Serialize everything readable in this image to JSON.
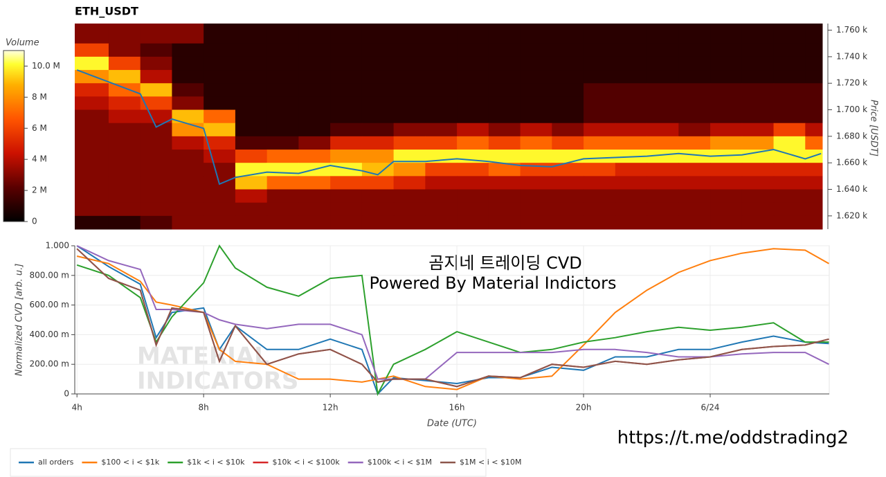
{
  "chart_data": [
    {
      "type": "heatmap",
      "title": "ETH_USDT",
      "y_label": "Price [USDT]",
      "xlim": [
        3.93,
        27.54
      ],
      "ylim": [
        1610,
        1765
      ],
      "yticks": [
        {
          "value": 1620,
          "label": "1.620 k"
        },
        {
          "value": 1640,
          "label": "1.640 k"
        },
        {
          "value": 1660,
          "label": "1.660 k"
        },
        {
          "value": 1680,
          "label": "1.680 k"
        },
        {
          "value": 1700,
          "label": "1.700 k"
        },
        {
          "value": 1720,
          "label": "1.720 k"
        },
        {
          "value": 1740,
          "label": "1.740 k"
        },
        {
          "value": 1760,
          "label": "1.760 k"
        }
      ],
      "x_edges": [
        3.93,
        5,
        6,
        7,
        8,
        9,
        10,
        11,
        12,
        13,
        14,
        15,
        16,
        17,
        18,
        19,
        20,
        21,
        22,
        23,
        24,
        25,
        26,
        27,
        27.54
      ],
      "y_edges": [
        1765,
        1750,
        1740,
        1730,
        1720,
        1710,
        1700,
        1690,
        1680,
        1670,
        1660,
        1650,
        1640,
        1630,
        1620,
        1610
      ],
      "values": [
        [
          3,
          3,
          3,
          3,
          1,
          1,
          1,
          1,
          1,
          1,
          1,
          1,
          1,
          1,
          1,
          1,
          1,
          1,
          1,
          1,
          1,
          1,
          1,
          1
        ],
        [
          6,
          3,
          2,
          1,
          1,
          1,
          1,
          1,
          1,
          1,
          1,
          1,
          1,
          1,
          1,
          1,
          1,
          1,
          1,
          1,
          1,
          1,
          1,
          1
        ],
        [
          10,
          6,
          3,
          1,
          1,
          1,
          1,
          1,
          1,
          1,
          1,
          1,
          1,
          1,
          1,
          1,
          1,
          1,
          1,
          1,
          1,
          1,
          1,
          1
        ],
        [
          8,
          9,
          4,
          1,
          1,
          1,
          1,
          1,
          1,
          1,
          1,
          1,
          1,
          1,
          1,
          1,
          1,
          1,
          1,
          1,
          1,
          1,
          1,
          1
        ],
        [
          5,
          7,
          9,
          2,
          1,
          1,
          1,
          1,
          1,
          1,
          1,
          1,
          1,
          1,
          1,
          1,
          2,
          2,
          2,
          2,
          2,
          2,
          2,
          2
        ],
        [
          4,
          5,
          6,
          3,
          1,
          1,
          1,
          1,
          1,
          1,
          1,
          1,
          1,
          1,
          1,
          1,
          2,
          2,
          2,
          2,
          2,
          2,
          2,
          2
        ],
        [
          3,
          4,
          4,
          9,
          7,
          1,
          1,
          1,
          1,
          1,
          1,
          1,
          1,
          1,
          1,
          1,
          2,
          2,
          2,
          2,
          2,
          2,
          2,
          2
        ],
        [
          3,
          3,
          3,
          8,
          9,
          1,
          1,
          1,
          2,
          2,
          3,
          3,
          4,
          3,
          4,
          3,
          4,
          4,
          4,
          3,
          4,
          4,
          6,
          4
        ],
        [
          3,
          3,
          3,
          4,
          5,
          2,
          2,
          3,
          5,
          5,
          6,
          6,
          7,
          6,
          7,
          6,
          7,
          7,
          7,
          7,
          8,
          8,
          10,
          7
        ],
        [
          3,
          3,
          3,
          3,
          4,
          6,
          7,
          7,
          8,
          8,
          10,
          10,
          10,
          10,
          10,
          10,
          10,
          10,
          10,
          10,
          10,
          10,
          10,
          10
        ],
        [
          3,
          3,
          3,
          3,
          3,
          10,
          10,
          10,
          10,
          9,
          8,
          6,
          6,
          7,
          6,
          6,
          6,
          5,
          5,
          5,
          5,
          5,
          5,
          5
        ],
        [
          3,
          3,
          3,
          3,
          3,
          9,
          7,
          7,
          6,
          6,
          5,
          4,
          4,
          4,
          4,
          4,
          4,
          4,
          4,
          4,
          4,
          4,
          4,
          4
        ],
        [
          3,
          3,
          3,
          3,
          3,
          4,
          3,
          3,
          3,
          3,
          3,
          3,
          3,
          3,
          3,
          3,
          3,
          3,
          3,
          3,
          3,
          3,
          3,
          3
        ],
        [
          3,
          3,
          3,
          3,
          3,
          3,
          3,
          3,
          3,
          3,
          3,
          3,
          3,
          3,
          3,
          3,
          3,
          3,
          3,
          3,
          3,
          3,
          3,
          3
        ],
        [
          1,
          1,
          2,
          3,
          3,
          3,
          3,
          3,
          3,
          3,
          3,
          3,
          3,
          3,
          3,
          3,
          3,
          3,
          3,
          3,
          3,
          3,
          3,
          3
        ]
      ],
      "colorbar": {
        "title": "Volume",
        "lim": [
          0,
          11
        ],
        "ticks": [
          0,
          {
            "value": 2,
            "label": "2 M"
          },
          {
            "value": 4,
            "label": "4 M"
          },
          {
            "value": 6,
            "label": "6 M"
          },
          {
            "value": 8,
            "label": "8 M"
          },
          {
            "value": 10,
            "label": "10.0 M"
          }
        ]
      },
      "x": [
        4,
        5,
        6,
        6.5,
        7,
        8,
        8.5,
        9,
        10,
        11,
        12,
        13,
        13.5,
        14,
        15,
        16,
        17,
        18,
        19,
        20,
        21,
        22,
        23,
        24,
        25,
        26,
        27,
        27.5
      ],
      "series": [
        {
          "color": "#1f77b4",
          "values": [
            1730,
            1721,
            1712,
            1687,
            1693,
            1686,
            1644,
            1649,
            1653,
            1652,
            1658,
            1654,
            1651,
            1661,
            1661,
            1663,
            1661,
            1658,
            1657,
            1663,
            1664,
            1665,
            1667,
            1665,
            1666,
            1670,
            1663,
            1667
          ]
        }
      ]
    },
    {
      "type": "line",
      "x_label": "Date (UTC)",
      "y_label": "Normalized CVD [arb. u.]",
      "xlim": [
        3.93,
        27.76
      ],
      "ylim": [
        0,
        1
      ],
      "grid": true,
      "legend": "bottom-left",
      "xticks": [
        {
          "value": 4,
          "label": "4h"
        },
        {
          "value": 8,
          "label": "8h"
        },
        {
          "value": 12,
          "label": "12h"
        },
        {
          "value": 16,
          "label": "16h"
        },
        {
          "value": 20,
          "label": "20h"
        },
        {
          "value": 24,
          "label": "6/24"
        }
      ],
      "yticks": [
        0,
        {
          "value": 0.2,
          "label": "200.00 m"
        },
        {
          "value": 0.4,
          "label": "400.00 m"
        },
        {
          "value": 0.6,
          "label": "600.00 m"
        },
        {
          "value": 0.8,
          "label": "800.00 m"
        },
        {
          "value": 1,
          "label": "1.000"
        }
      ],
      "annotations": [
        "곰지네 트레이딩 CVD",
        "Powered By Material Indictors",
        "MATERIAL",
        "INDICATORS"
      ],
      "x": [
        4,
        5,
        6,
        6.5,
        7,
        8,
        8.5,
        9,
        10,
        11,
        12,
        13,
        13.5,
        14,
        15,
        16,
        17,
        18,
        19,
        20,
        21,
        22,
        23,
        24,
        25,
        26,
        27,
        27.75
      ],
      "series": [
        {
          "name": "all orders",
          "color": "#1f77b4",
          "values": [
            1.0,
            0.86,
            0.74,
            0.38,
            0.55,
            0.58,
            0.3,
            0.46,
            0.3,
            0.3,
            0.37,
            0.3,
            0.0,
            0.11,
            0.09,
            0.07,
            0.11,
            0.11,
            0.18,
            0.16,
            0.25,
            0.25,
            0.3,
            0.3,
            0.35,
            0.39,
            0.35,
            0.34
          ]
        },
        {
          "name": "$100 < i < $1k",
          "color": "#ff7f0e",
          "values": [
            0.93,
            0.88,
            0.76,
            0.62,
            0.6,
            0.55,
            0.3,
            0.22,
            0.2,
            0.1,
            0.1,
            0.08,
            0.1,
            0.12,
            0.05,
            0.03,
            0.12,
            0.1,
            0.12,
            0.33,
            0.55,
            0.7,
            0.82,
            0.9,
            0.95,
            0.98,
            0.97,
            0.88
          ]
        },
        {
          "name": "$1k < i < $10k",
          "color": "#2ca02c",
          "values": [
            0.87,
            0.8,
            0.65,
            0.35,
            0.52,
            0.75,
            1.0,
            0.85,
            0.72,
            0.66,
            0.78,
            0.8,
            0.0,
            0.2,
            0.3,
            0.42,
            0.35,
            0.28,
            0.3,
            0.35,
            0.38,
            0.42,
            0.45,
            0.43,
            0.45,
            0.48,
            0.35,
            0.35
          ]
        },
        {
          "name": "$10k < i < $100k",
          "color": "#d62728",
          "values": [
            0.98,
            0.78,
            0.7,
            0.33,
            0.58,
            0.55,
            0.22,
            0.46,
            0.2,
            0.27,
            0.3,
            0.2,
            0.08,
            0.1,
            0.1,
            0.05,
            0.12,
            0.11,
            0.2,
            0.18,
            0.22,
            0.2,
            0.23,
            0.25,
            0.3,
            0.32,
            0.33,
            0.37
          ]
        },
        {
          "name": "$100k < i < $1M",
          "color": "#9467bd",
          "values": [
            1.0,
            0.9,
            0.84,
            0.57,
            0.57,
            0.55,
            0.5,
            0.47,
            0.44,
            0.47,
            0.47,
            0.4,
            0.1,
            0.1,
            0.1,
            0.28,
            0.28,
            0.28,
            0.28,
            0.3,
            0.3,
            0.28,
            0.25,
            0.25,
            0.27,
            0.28,
            0.28,
            0.2
          ]
        },
        {
          "name": "$1M < i < $10M",
          "color": "#8c564b",
          "values": [
            0.98,
            0.78,
            0.7,
            0.33,
            0.58,
            0.55,
            0.22,
            0.46,
            0.2,
            0.27,
            0.3,
            0.2,
            0.08,
            0.1,
            0.1,
            0.05,
            0.12,
            0.11,
            0.2,
            0.18,
            0.22,
            0.2,
            0.23,
            0.25,
            0.3,
            0.32,
            0.33,
            0.37
          ]
        }
      ]
    }
  ],
  "footer": "https://t.me/oddstrading2"
}
